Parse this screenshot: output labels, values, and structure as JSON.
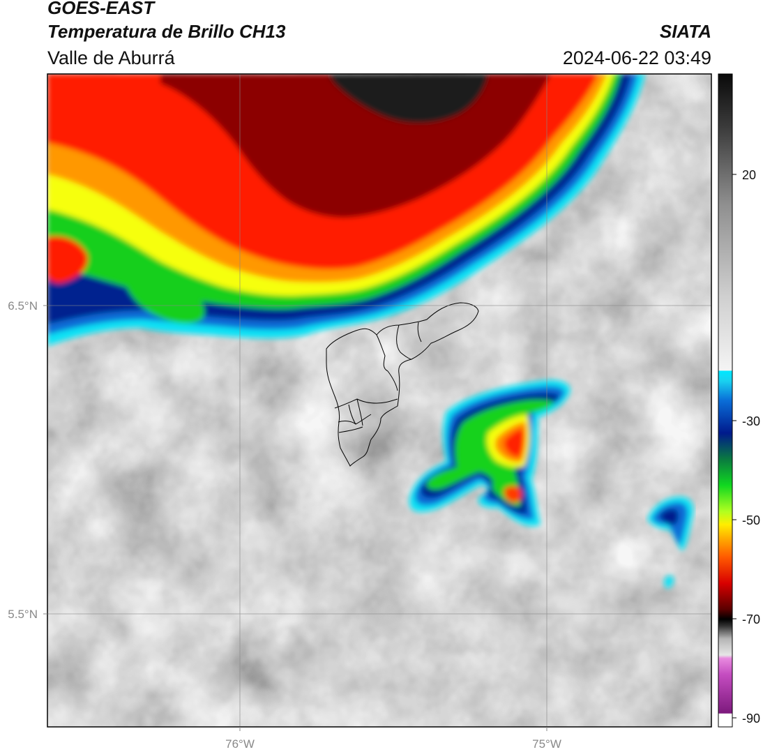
{
  "header": {
    "satellite": "GOES-EAST",
    "product": "Temperatura de Brillo CH13",
    "source": "SIATA",
    "region": "Valle de Aburrá",
    "datetime": "2024-06-22 03:49"
  },
  "map": {
    "lat_labels": [
      "6.5°N",
      "5.5°N"
    ],
    "lon_labels": [
      "76°W",
      "75°W"
    ]
  },
  "colorbar": {
    "ticks": [
      "20",
      "-30",
      "-50",
      "-70",
      "-90"
    ]
  },
  "colors": {
    "cyan": "#00e5f5",
    "blue": "#0057c8",
    "navy": "#001a8c",
    "green": "#0fd21f",
    "yellow": "#ffe600",
    "orange": "#ff8c00",
    "red": "#ff1a00",
    "darkred": "#7a0000",
    "magenta": "#e05acb"
  }
}
